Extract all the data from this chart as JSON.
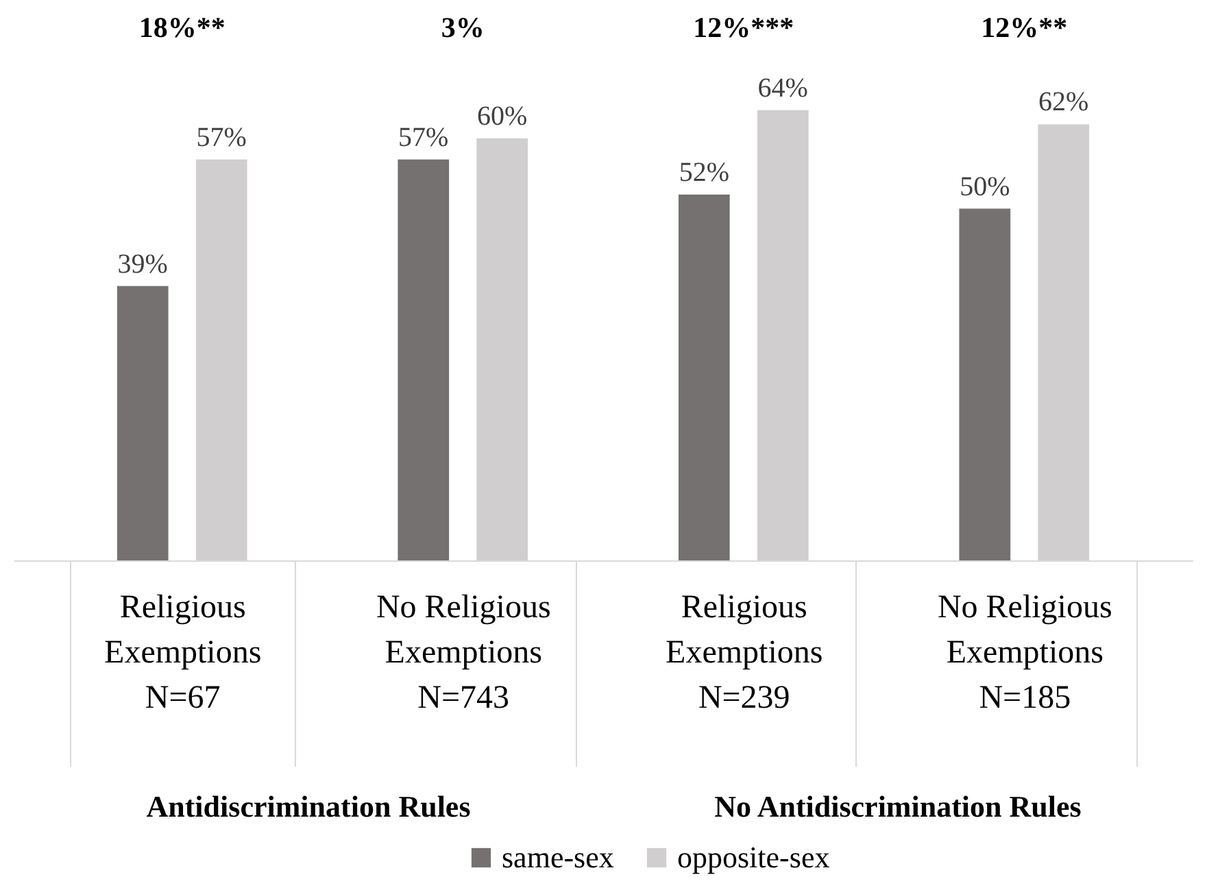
{
  "chart_data": {
    "type": "bar",
    "categories": [
      "Religious\nExemptions\nN=67",
      "No Religious\nExemptions\nN=743",
      "Religious\nExemptions\nN=239",
      "No Religious\nExemptions\nN=185"
    ],
    "series": [
      {
        "name": "same-sex",
        "color": "#767171",
        "values": [
          39,
          57,
          52,
          50
        ],
        "value_labels": [
          "39%",
          "57%",
          "52%",
          "50%"
        ]
      },
      {
        "name": "opposite-sex",
        "color": "#d0cece",
        "values": [
          57,
          60,
          64,
          62
        ],
        "value_labels": [
          "57%",
          "60%",
          "64%",
          "62%"
        ]
      }
    ],
    "grid": false,
    "legend": "bottom",
    "tick_labels": "x",
    "annotations": [
      "18%**",
      "3%",
      "12%***",
      "12%**",
      "Antidiscrimination Rules",
      "No Antidiscrimination Rules"
    ]
  }
}
